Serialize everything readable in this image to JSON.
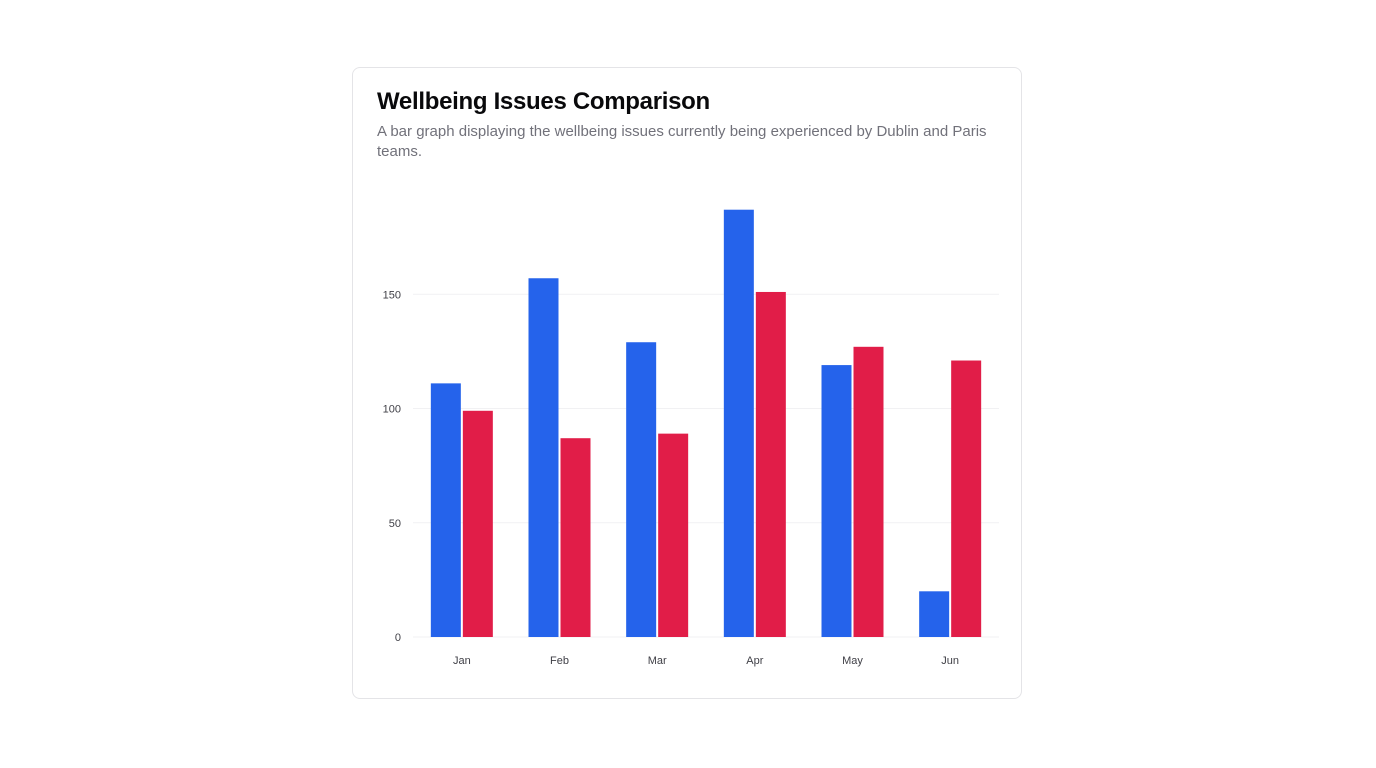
{
  "card": {
    "title": "Wellbeing Issues Comparison",
    "subtitle": "A bar graph displaying the wellbeing issues currently being experienced by Dublin and Paris teams."
  },
  "colors": {
    "dublin": "#2563eb",
    "paris": "#e11d48",
    "grid": "#f1f1f3"
  },
  "chart_data": {
    "type": "bar",
    "categories": [
      "Jan",
      "Feb",
      "Mar",
      "Apr",
      "May",
      "Jun"
    ],
    "series": [
      {
        "values": [
          111,
          157,
          129,
          187,
          119,
          20
        ],
        "color": "#2563eb"
      },
      {
        "values": [
          99,
          87,
          89,
          151,
          127,
          121
        ],
        "color": "#e11d48"
      }
    ],
    "yticks": [
      0,
      50,
      100,
      150
    ],
    "ylim": [
      0,
      200
    ],
    "grid": true,
    "legend": "none"
  }
}
